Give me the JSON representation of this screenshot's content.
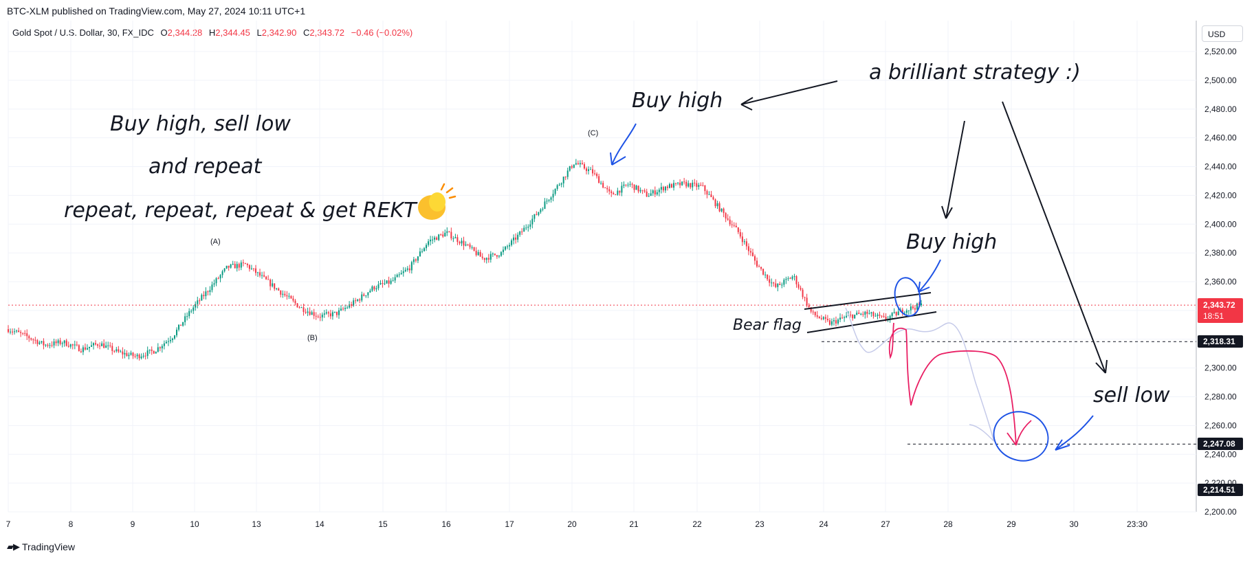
{
  "header": {
    "published": "BTC-XLM published on TradingView.com, May 27, 2024 10:11 UTC+1"
  },
  "symbol": {
    "name": "Gold Spot / U.S. Dollar, 30, FX_IDC",
    "open_label": "O",
    "open": "2,344.28",
    "high_label": "H",
    "high": "2,344.45",
    "low_label": "L",
    "low": "2,342.90",
    "close_label": "C",
    "close": "2,343.72",
    "change": "−0.46 (−0.02%)"
  },
  "currency": "USD",
  "footer": {
    "brand": "TradingView",
    "logo_icon": "tradingview-logo-icon"
  },
  "colors": {
    "up": "#089981",
    "down": "#f23645",
    "price_line": "#f23645",
    "annotation_blue": "#1e53e5",
    "annotation_pink": "#e91e63",
    "annotation_black": "#131722"
  },
  "annotations": {
    "text1": "Buy high, sell low",
    "text2": "and repeat",
    "text3": "repeat, repeat, repeat & get REKT",
    "clap_icon": "clapping-hands-icon",
    "brilliant": "a brilliant strategy :)",
    "buy_high_1": "Buy high",
    "buy_high_2": "Buy high",
    "sell_low": "sell low",
    "bear_flag": "Bear flag",
    "wave_a": "(A)",
    "wave_b": "(B)",
    "wave_c": "(C)"
  },
  "price_badges": {
    "current": "2,343.72",
    "countdown": "18:51",
    "level1": "2,318.31",
    "level2": "2,247.08",
    "level3": "2,214.51"
  },
  "chart_data": {
    "type": "candlestick",
    "ylim": [
      2200,
      2530
    ],
    "y_ticks": [
      "2,520.00",
      "2,500.00",
      "2,480.00",
      "2,460.00",
      "2,440.00",
      "2,420.00",
      "2,400.00",
      "2,380.00",
      "2,360.00",
      "2,340.00",
      "2,320.00",
      "2,300.00",
      "2,280.00",
      "2,260.00",
      "2,240.00",
      "2,220.00",
      "2,200.00"
    ],
    "y_tick_values": [
      2520,
      2500,
      2480,
      2460,
      2440,
      2420,
      2400,
      2380,
      2360,
      2340,
      2320,
      2300,
      2280,
      2260,
      2240,
      2220,
      2200
    ],
    "x_ticks": [
      "7",
      "8",
      "9",
      "10",
      "13",
      "14",
      "15",
      "16",
      "17",
      "20",
      "21",
      "22",
      "23",
      "24",
      "27",
      "28",
      "29",
      "30",
      "23:30"
    ],
    "price_path_points": [
      [
        0,
        2327
      ],
      [
        3,
        2322
      ],
      [
        6,
        2316
      ],
      [
        9,
        2318
      ],
      [
        12,
        2313
      ],
      [
        15,
        2317
      ],
      [
        18,
        2311
      ],
      [
        21,
        2308
      ],
      [
        24,
        2312
      ],
      [
        27,
        2322
      ],
      [
        30,
        2340
      ],
      [
        33,
        2355
      ],
      [
        36,
        2370
      ],
      [
        39,
        2372
      ],
      [
        42,
        2362
      ],
      [
        45,
        2352
      ],
      [
        48,
        2342
      ],
      [
        51,
        2336
      ],
      [
        54,
        2338
      ],
      [
        57,
        2346
      ],
      [
        60,
        2356
      ],
      [
        63,
        2360
      ],
      [
        66,
        2370
      ],
      [
        69,
        2388
      ],
      [
        72,
        2394
      ],
      [
        75,
        2386
      ],
      [
        78,
        2376
      ],
      [
        81,
        2380
      ],
      [
        84,
        2393
      ],
      [
        87,
        2408
      ],
      [
        90,
        2425
      ],
      [
        93,
        2443
      ],
      [
        96,
        2436
      ],
      [
        99,
        2420
      ],
      [
        102,
        2428
      ],
      [
        105,
        2420
      ],
      [
        108,
        2426
      ],
      [
        111,
        2428
      ],
      [
        114,
        2426
      ],
      [
        117,
        2410
      ],
      [
        120,
        2394
      ],
      [
        123,
        2372
      ],
      [
        126,
        2356
      ],
      [
        129,
        2364
      ],
      [
        132,
        2338
      ],
      [
        135,
        2331
      ],
      [
        138,
        2336
      ],
      [
        141,
        2338
      ],
      [
        144,
        2334
      ],
      [
        147,
        2340
      ],
      [
        150,
        2343.72
      ]
    ],
    "current_price": 2343.72,
    "levels": [
      2318.31,
      2247.08,
      2214.51
    ]
  }
}
